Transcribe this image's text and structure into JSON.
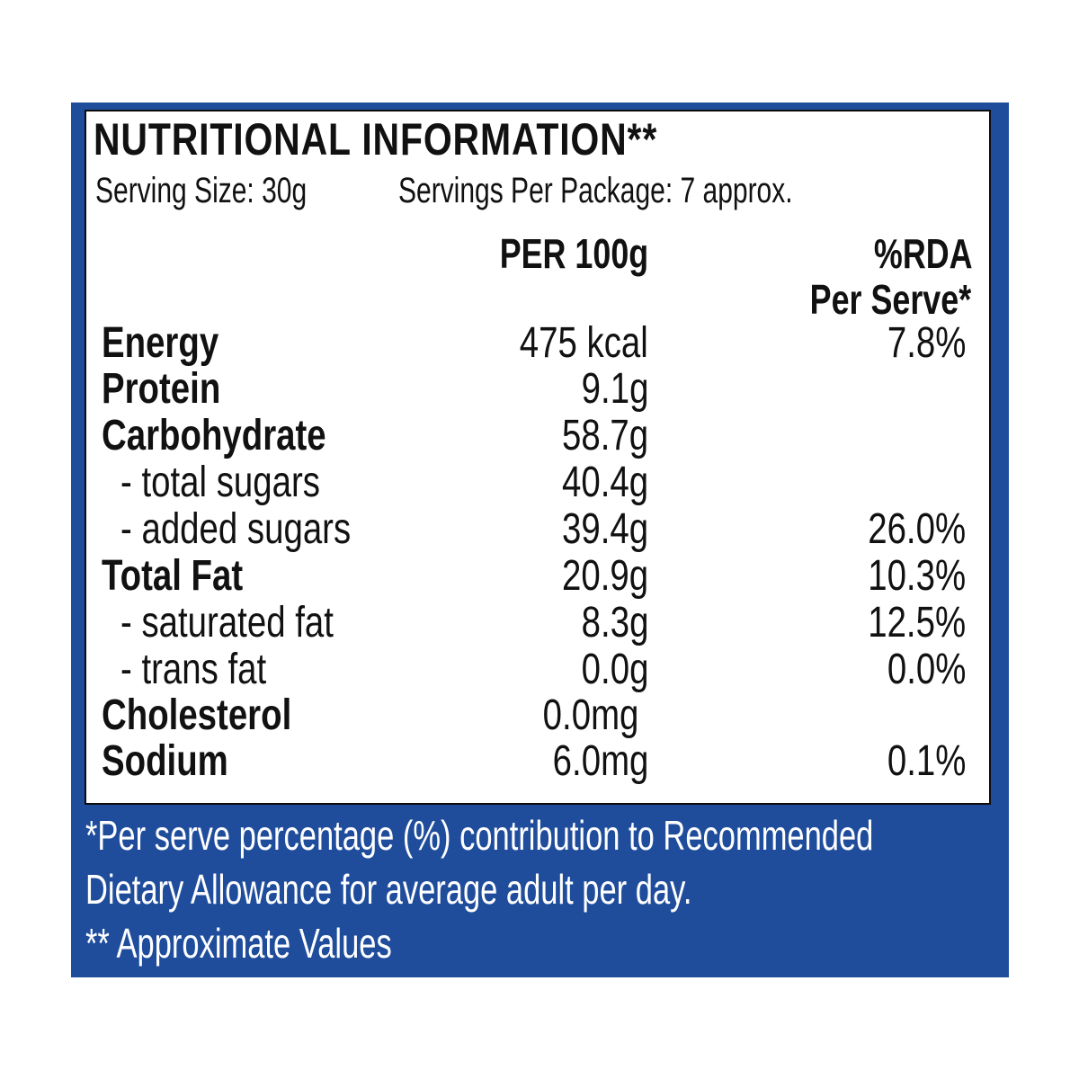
{
  "title": "NUTRITIONAL INFORMATION**",
  "serving_size": "Serving Size: 30g",
  "servings_per_package": "Servings Per Package: 7 approx.",
  "columns": {
    "per100": "PER 100g",
    "rda_line1": "%RDA",
    "rda_line2": "Per Serve*"
  },
  "rows": [
    {
      "name": "Energy",
      "per100": "475 kcal",
      "rda": "7.8%"
    },
    {
      "name": "Protein",
      "per100": "9.1g",
      "rda": ""
    },
    {
      "name": "Carbohydrate",
      "per100": "58.7g",
      "rda": ""
    },
    {
      "name": "- total sugars",
      "per100": "40.4g",
      "rda": ""
    },
    {
      "name": "- added sugars",
      "per100": "39.4g",
      "rda": "26.0%"
    },
    {
      "name": "Total Fat",
      "per100": "20.9g",
      "rda": "10.3%"
    },
    {
      "name": "- saturated fat",
      "per100": "8.3g",
      "rda": "12.5%"
    },
    {
      "name": "- trans fat",
      "per100": "0.0g",
      "rda": "0.0%"
    },
    {
      "name": "Cholesterol",
      "per100": "0.0mg",
      "rda": ""
    },
    {
      "name": "Sodium",
      "per100": "6.0mg",
      "rda": "0.1%"
    }
  ],
  "footnotes": {
    "line1": "*Per serve percentage (%) contribution to Recommended",
    "line2": "Dietary Allowance for average adult per day.",
    "line3": "** Approximate Values"
  },
  "colors": {
    "panel_blue": "#1f4d9c",
    "text": "#111111",
    "background": "#ffffff"
  }
}
